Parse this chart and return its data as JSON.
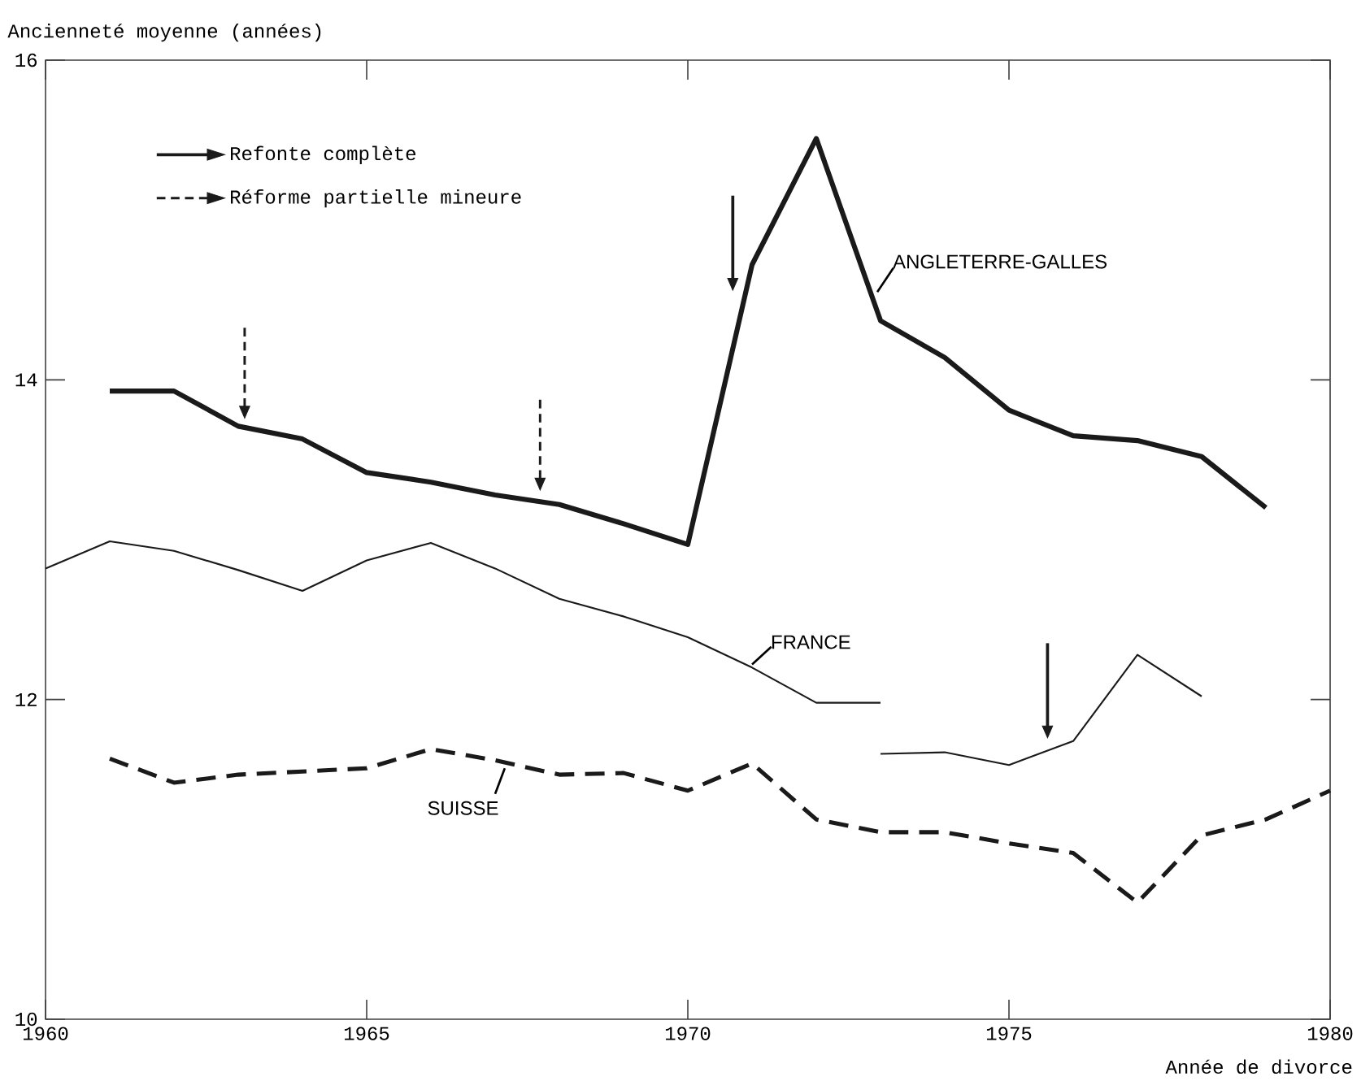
{
  "chart_data": {
    "type": "line",
    "xlabel": "Année de divorce",
    "ylabel": "Ancienneté moyenne (années)",
    "xlim": [
      1960,
      1980
    ],
    "ylim": [
      10,
      16
    ],
    "xticks": [
      1960,
      1965,
      1970,
      1975,
      1980
    ],
    "yticks": [
      10,
      12,
      14,
      16
    ],
    "grid": false,
    "legend": "top left",
    "series": [
      {
        "name": "ANGLETERRE-GALLES",
        "color": "#1a1a1a",
        "line_style": "solid",
        "x": [
          1961,
          1962,
          1963,
          1964,
          1965,
          1966,
          1967,
          1968,
          1969,
          1970,
          1971,
          1972,
          1973,
          1974,
          1975,
          1976,
          1977,
          1978,
          1979
        ],
        "values": [
          13.93,
          13.93,
          13.71,
          13.63,
          13.42,
          13.36,
          13.28,
          13.22,
          13.1,
          12.97,
          14.72,
          15.51,
          14.37,
          14.14,
          13.81,
          13.65,
          13.62,
          13.52,
          13.2
        ]
      },
      {
        "name": "FRANCE",
        "color": "#1a1a1a",
        "line_style": "solid",
        "x": [
          1960,
          1961,
          1962,
          1963,
          1964,
          1965,
          1966,
          1967,
          1968,
          1969,
          1970,
          1971,
          1972,
          1973
        ],
        "values": [
          12.82,
          12.99,
          12.93,
          12.81,
          12.68,
          12.87,
          12.98,
          12.82,
          12.63,
          12.52,
          12.39,
          12.2,
          11.98,
          11.98
        ]
      },
      {
        "color": "#1a1a1a",
        "line_style": "solid",
        "x": [
          1973,
          1974,
          1975,
          1976,
          1977,
          1978
        ],
        "values": [
          11.66,
          11.67,
          11.59,
          11.74,
          12.28,
          12.02
        ]
      },
      {
        "name": "SUISSE",
        "color": "#1a1a1a",
        "line_style": "dashed",
        "x": [
          1961,
          1962,
          1963,
          1964,
          1965,
          1966,
          1967,
          1968,
          1969,
          1970,
          1971,
          1972,
          1973,
          1974,
          1975,
          1976,
          1977,
          1978,
          1979,
          1980
        ],
        "values": [
          11.63,
          11.48,
          11.53,
          11.55,
          11.57,
          11.69,
          11.62,
          11.53,
          11.54,
          11.43,
          11.6,
          11.25,
          11.17,
          11.17,
          11.1,
          11.04,
          10.73,
          11.15,
          11.25,
          11.43
        ]
      },
      {
        "name": "Refonte complète",
        "type": "scatter",
        "marker": "triangle",
        "color": "#1a1a1a",
        "line_style": "solid",
        "x": [
          1970.7,
          1975.6
        ],
        "values": [
          14.61,
          11.81
        ]
      },
      {
        "name": "Réforme partielle mineure",
        "type": "scatter",
        "marker": "triangle",
        "color": "#1a1a1a",
        "line_style": "dashed",
        "x": [
          1963.1,
          1967.7
        ],
        "values": [
          13.81,
          13.36
        ]
      }
    ]
  }
}
